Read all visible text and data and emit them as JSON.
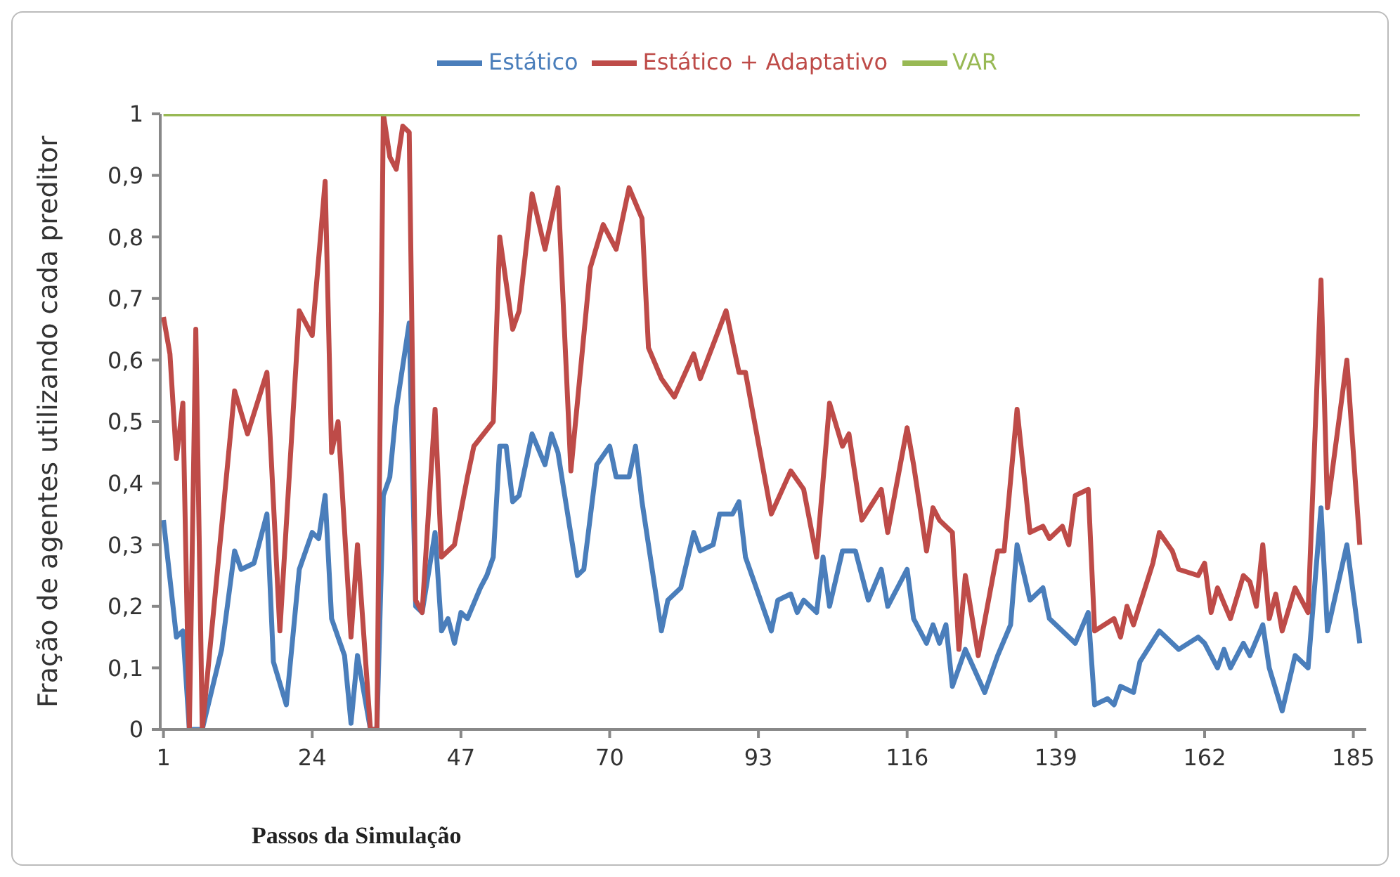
{
  "chart_data": {
    "type": "line",
    "xlabel": "Passos da Simulação",
    "ylabel": "Fração de agentes utilizando cada preditor",
    "legend": "top",
    "marker": "none",
    "line_style": "solid",
    "grid": false,
    "xlim": [
      0.5,
      187
    ],
    "xticks": [
      1,
      24,
      47,
      70,
      93,
      116,
      139,
      162,
      185
    ],
    "ylim": [
      0,
      1
    ],
    "yticks": [
      0,
      {
        "value": 0.1,
        "label": "0,1"
      },
      {
        "value": 0.2,
        "label": "0,2"
      },
      {
        "value": 0.3,
        "label": "0,3"
      },
      {
        "value": 0.4,
        "label": "0,4"
      },
      {
        "value": 0.5,
        "label": "0,5"
      },
      {
        "value": 0.6,
        "label": "0,6"
      },
      {
        "value": 0.7,
        "label": "0,7"
      },
      {
        "value": 0.8,
        "label": "0,8"
      },
      {
        "value": 0.9,
        "label": "0,9"
      },
      1
    ],
    "series": [
      {
        "name": "Estático",
        "color": "#4a7ebb",
        "x": [
          1,
          3,
          4,
          5,
          7,
          10,
          12,
          13,
          15,
          17,
          18,
          20,
          22,
          24,
          25,
          26,
          27,
          29,
          30,
          31,
          33,
          34,
          35,
          36,
          37,
          39,
          40,
          41,
          43,
          44,
          45,
          46,
          47,
          48,
          50,
          51,
          52,
          53,
          54,
          55,
          56,
          58,
          60,
          61,
          62,
          65,
          66,
          68,
          70,
          71,
          73,
          74,
          75,
          78,
          79,
          81,
          83,
          84,
          86,
          87,
          89,
          90,
          91,
          92,
          95,
          96,
          98,
          99,
          100,
          102,
          103,
          104,
          106,
          108,
          110,
          112,
          113,
          116,
          117,
          119,
          120,
          121,
          122,
          123,
          125,
          128,
          130,
          132,
          133,
          135,
          137,
          138,
          140,
          142,
          144,
          145,
          147,
          148,
          149,
          151,
          152,
          155,
          158,
          161,
          162,
          164,
          165,
          166,
          168,
          169,
          171,
          172,
          174,
          176,
          178,
          180,
          181,
          184,
          186
        ],
        "values": [
          0.34,
          0.15,
          0.16,
          0,
          0,
          0.13,
          0.29,
          0.26,
          0.27,
          0.35,
          0.11,
          0.04,
          0.26,
          0.32,
          0.31,
          0.38,
          0.18,
          0.12,
          0.01,
          0.12,
          0,
          0,
          0.38,
          0.41,
          0.52,
          0.66,
          0.2,
          0.19,
          0.32,
          0.16,
          0.18,
          0.14,
          0.19,
          0.18,
          0.23,
          0.25,
          0.28,
          0.46,
          0.46,
          0.37,
          0.38,
          0.48,
          0.43,
          0.48,
          0.45,
          0.25,
          0.26,
          0.43,
          0.46,
          0.41,
          0.41,
          0.46,
          0.37,
          0.16,
          0.21,
          0.23,
          0.32,
          0.29,
          0.3,
          0.35,
          0.35,
          0.37,
          0.28,
          0.25,
          0.16,
          0.21,
          0.22,
          0.19,
          0.21,
          0.19,
          0.28,
          0.2,
          0.29,
          0.29,
          0.21,
          0.26,
          0.2,
          0.26,
          0.18,
          0.14,
          0.17,
          0.14,
          0.17,
          0.07,
          0.13,
          0.06,
          0.12,
          0.17,
          0.3,
          0.21,
          0.23,
          0.18,
          0.16,
          0.14,
          0.19,
          0.04,
          0.05,
          0.04,
          0.07,
          0.06,
          0.11,
          0.16,
          0.13,
          0.15,
          0.14,
          0.1,
          0.13,
          0.1,
          0.14,
          0.12,
          0.17,
          0.1,
          0.03,
          0.12,
          0.1,
          0.36,
          0.16,
          0.3,
          0.14
        ]
      },
      {
        "name": "Estático + Adaptativo",
        "color": "#be4b48",
        "x": [
          1,
          2,
          3,
          4,
          5,
          6,
          7,
          12,
          14,
          17,
          19,
          22,
          24,
          26,
          27,
          28,
          30,
          31,
          33,
          34,
          35,
          36,
          37,
          38,
          39,
          40,
          41,
          43,
          44,
          46,
          48,
          49,
          52,
          53,
          55,
          56,
          58,
          60,
          62,
          64,
          67,
          69,
          71,
          73,
          75,
          76,
          78,
          80,
          83,
          84,
          88,
          90,
          91,
          95,
          98,
          100,
          102,
          104,
          106,
          107,
          109,
          112,
          113,
          116,
          117,
          119,
          120,
          121,
          123,
          124,
          125,
          127,
          130,
          131,
          133,
          135,
          137,
          138,
          140,
          141,
          142,
          144,
          145,
          148,
          149,
          150,
          151,
          154,
          155,
          157,
          158,
          161,
          162,
          163,
          164,
          166,
          168,
          169,
          170,
          171,
          172,
          173,
          174,
          176,
          178,
          180,
          181,
          184,
          186
        ],
        "values": [
          0.67,
          0.61,
          0.44,
          0.53,
          0,
          0.65,
          0,
          0.55,
          0.48,
          0.58,
          0.16,
          0.68,
          0.64,
          0.89,
          0.45,
          0.5,
          0.15,
          0.3,
          0,
          0,
          1,
          0.93,
          0.91,
          0.98,
          0.97,
          0.21,
          0.19,
          0.52,
          0.28,
          0.3,
          0.41,
          0.46,
          0.5,
          0.8,
          0.65,
          0.68,
          0.87,
          0.78,
          0.88,
          0.42,
          0.75,
          0.82,
          0.78,
          0.88,
          0.83,
          0.62,
          0.57,
          0.54,
          0.61,
          0.57,
          0.68,
          0.58,
          0.58,
          0.35,
          0.42,
          0.39,
          0.28,
          0.53,
          0.46,
          0.48,
          0.34,
          0.39,
          0.32,
          0.49,
          0.43,
          0.29,
          0.36,
          0.34,
          0.32,
          0.13,
          0.25,
          0.12,
          0.29,
          0.29,
          0.52,
          0.32,
          0.33,
          0.31,
          0.33,
          0.3,
          0.38,
          0.39,
          0.16,
          0.18,
          0.15,
          0.2,
          0.17,
          0.27,
          0.32,
          0.29,
          0.26,
          0.25,
          0.27,
          0.19,
          0.23,
          0.18,
          0.25,
          0.24,
          0.2,
          0.3,
          0.18,
          0.22,
          0.16,
          0.23,
          0.19,
          0.73,
          0.36,
          0.6,
          0.3
        ]
      },
      {
        "name": "VAR",
        "color": "#98b954",
        "x": [
          1,
          186
        ],
        "values": [
          1,
          1
        ]
      }
    ]
  }
}
